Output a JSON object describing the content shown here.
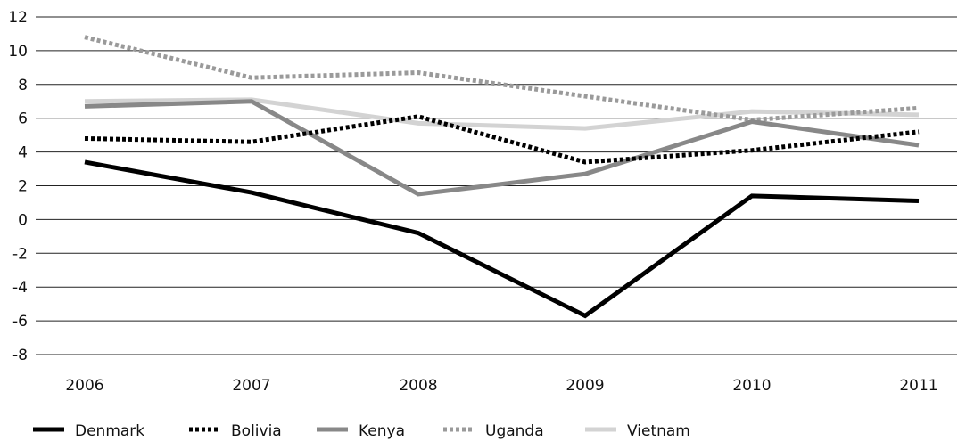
{
  "chart_data": {
    "type": "line",
    "x": [
      "2006",
      "2007",
      "2008",
      "2009",
      "2010",
      "2011"
    ],
    "ylim": [
      -8,
      12
    ],
    "yticks": [
      12,
      10,
      8,
      6,
      4,
      2,
      0,
      -2,
      -4,
      -6,
      -8
    ],
    "ytick_labels": [
      "12",
      "10",
      "8",
      "6",
      "4",
      "2",
      "0",
      "-2",
      "-4",
      "-6",
      "-8"
    ],
    "grid": true,
    "legend_position": "bottom",
    "series": [
      {
        "name": "Denmark",
        "values": [
          3.4,
          1.6,
          -0.8,
          -5.7,
          1.4,
          1.1
        ],
        "color": "#000000",
        "style": "solid"
      },
      {
        "name": "Bolivia",
        "values": [
          4.8,
          4.6,
          6.1,
          3.4,
          4.1,
          5.2
        ],
        "color": "#000000",
        "style": "dotted"
      },
      {
        "name": "Kenya",
        "values": [
          6.7,
          7.0,
          1.5,
          2.7,
          5.8,
          4.4
        ],
        "color": "#888888",
        "style": "solid"
      },
      {
        "name": "Uganda",
        "values": [
          10.8,
          8.4,
          8.7,
          7.3,
          5.9,
          6.6
        ],
        "color": "#9a9a9a",
        "style": "dotted"
      },
      {
        "name": "Vietnam",
        "values": [
          7.0,
          7.1,
          5.7,
          5.4,
          6.4,
          6.2
        ],
        "color": "#d3d3d3",
        "style": "solid"
      }
    ]
  }
}
